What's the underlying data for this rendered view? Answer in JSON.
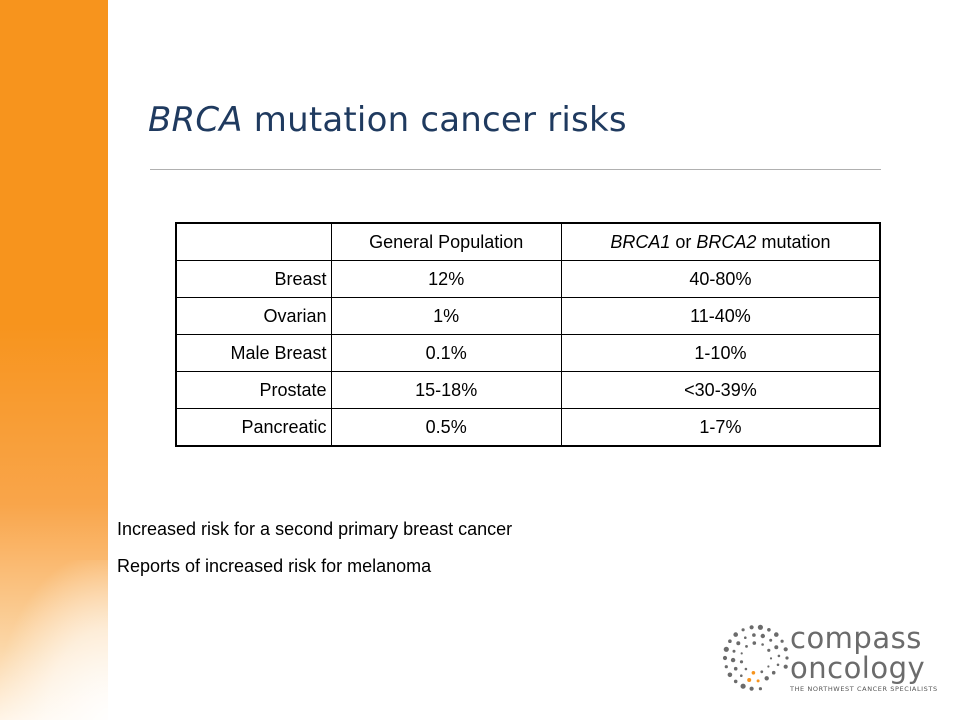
{
  "slide": {
    "title_italic": "BRCA",
    "title_rest": " mutation cancer risks"
  },
  "table": {
    "header": {
      "col0": "",
      "col1": "General Population",
      "col2_italic_a": "BRCA1",
      "col2_mid": " or ",
      "col2_italic_b": "BRCA2",
      "col2_rest": " mutation"
    },
    "rows": [
      {
        "cancer": "Breast",
        "general": "12%",
        "brca": "40-80%"
      },
      {
        "cancer": "Ovarian",
        "general": "1%",
        "brca": "11-40%"
      },
      {
        "cancer": "Male Breast",
        "general": "0.1%",
        "brca": "1-10%"
      },
      {
        "cancer": "Prostate",
        "general": "15-18%",
        "brca": "<30-39%"
      },
      {
        "cancer": "Pancreatic",
        "general": "0.5%",
        "brca": "1-7%"
      }
    ]
  },
  "notes": [
    "Increased risk for a second primary breast cancer",
    "Reports of increased risk for melanoma"
  ],
  "logo": {
    "line1": "compass",
    "line2": "oncology",
    "tagline": "THE NORTHWEST CANCER SPECIALISTS",
    "dot_color": "#6b6b6b",
    "accent_color": "#f7941d"
  },
  "colors": {
    "sidebar": "#f7941d",
    "title": "#1f3a5f"
  }
}
